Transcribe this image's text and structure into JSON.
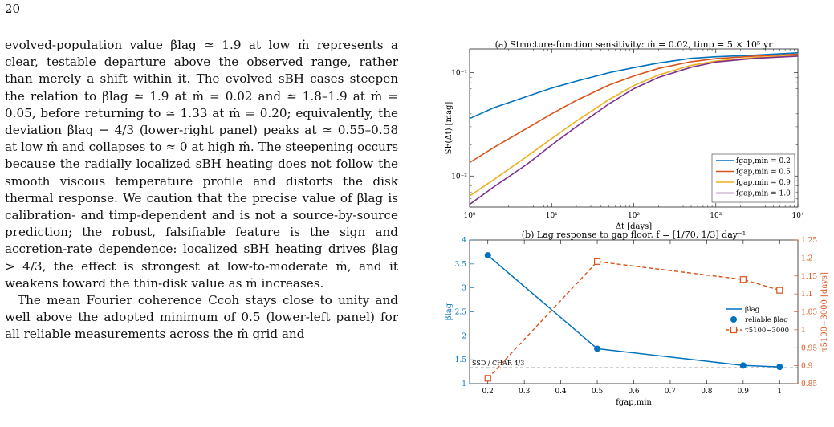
{
  "page": {
    "number": "20",
    "paragraphs": [
      "evolved-population value βlag ≃ 1.9 at low ṁ represents a clear, testable departure above the observed range, rather than merely a shift within it. The evolved sBH cases steepen the relation to βlag ≃ 1.9 at ṁ = 0.02 and ≃ 1.8–1.9 at ṁ = 0.05, before returning to ≃ 1.33 at ṁ = 0.20; equivalently, the deviation βlag − 4/3 (lower-right panel) peaks at ≃ 0.55–0.58 at low ṁ and collapses to ≈ 0 at high ṁ. The steepening occurs because the radially localized sBH heating does not follow the smooth viscous temperature profile and distorts the disk thermal response. We caution that the precise value of βlag is calibration- and timp-dependent and is not a source-by-source prediction; the robust, falsifiable feature is the sign and accretion-rate dependence: localized sBH heating drives βlag > 4/3, the effect is strongest at low-to-moderate ṁ, and it weakens toward the thin-disk value as ṁ increases.",
      "The mean Fourier coherence Ccoh stays close to unity and well above the adopted minimum of 0.5 (lower-left panel) for all reliable measurements across the ṁ grid and"
    ]
  },
  "chart_data": [
    {
      "type": "line",
      "title": "(a) Structure-function sensitivity: ṁ = 0.02, timp = 5 × 10⁵ yr",
      "xlabel": "Δt [days]",
      "ylabel": "SF(Δt) [mag]",
      "xscale": "log",
      "yscale": "log",
      "xlim": [
        1,
        10000
      ],
      "ylim": [
        0.005,
        0.17
      ],
      "xticks": [
        "10⁰",
        "10¹",
        "10²",
        "10³",
        "10⁴"
      ],
      "yticks": [
        "10⁻²",
        "10⁻¹"
      ],
      "legend_position": "lower-right",
      "grid": false,
      "series": [
        {
          "name": "fgap,min = 0.2",
          "color": "#0072bd",
          "x": [
            1,
            2,
            5,
            10,
            20,
            50,
            100,
            200,
            500,
            1000,
            3000,
            10000
          ],
          "values": [
            0.036,
            0.046,
            0.059,
            0.071,
            0.083,
            0.1,
            0.112,
            0.124,
            0.138,
            0.143,
            0.148,
            0.156
          ]
        },
        {
          "name": "fgap,min = 0.5",
          "color": "#d95319",
          "x": [
            1,
            2,
            5,
            10,
            20,
            50,
            100,
            200,
            500,
            1000,
            3000,
            10000
          ],
          "values": [
            0.0135,
            0.019,
            0.029,
            0.04,
            0.054,
            0.076,
            0.093,
            0.11,
            0.128,
            0.137,
            0.145,
            0.151
          ]
        },
        {
          "name": "fgap,min = 0.9",
          "color": "#edb120",
          "x": [
            1,
            2,
            5,
            10,
            20,
            50,
            100,
            200,
            500,
            1000,
            3000,
            10000
          ],
          "values": [
            0.0064,
            0.0093,
            0.0155,
            0.023,
            0.034,
            0.055,
            0.075,
            0.095,
            0.118,
            0.13,
            0.14,
            0.147
          ]
        },
        {
          "name": "fgap,min = 1.0",
          "color": "#7e2f8e",
          "x": [
            1,
            2,
            5,
            10,
            20,
            50,
            100,
            200,
            500,
            1000,
            3000,
            10000
          ],
          "values": [
            0.0053,
            0.0079,
            0.013,
            0.02,
            0.03,
            0.05,
            0.07,
            0.09,
            0.113,
            0.127,
            0.138,
            0.145
          ]
        }
      ]
    },
    {
      "type": "line",
      "title": "(b) Lag response to gap floor, f = [1/70, 1/3] day⁻¹",
      "xlabel": "fgap,min",
      "ylabel": "βlag",
      "y2label": "τ5100−3000 [days]",
      "xlim": [
        0.15,
        1.05
      ],
      "ylim": [
        1,
        4
      ],
      "y2lim": [
        0.85,
        1.25
      ],
      "xticks": [
        "0.2",
        "0.3",
        "0.4",
        "0.5",
        "0.6",
        "0.7",
        "0.8",
        "0.9",
        "1"
      ],
      "yticks": [
        "1",
        "1.5",
        "2",
        "2.5",
        "3",
        "3.5",
        "4"
      ],
      "y2ticks": [
        "0.85",
        "0.9",
        "0.95",
        "1",
        "1.05",
        "1.1",
        "1.15",
        "1.2",
        "1.25"
      ],
      "legend_position": "right",
      "grid": false,
      "x": [
        0.2,
        0.5,
        0.9,
        1.0
      ],
      "series": [
        {
          "name": "βlag",
          "axis": "left",
          "color": "#0072bd",
          "values": [
            3.68,
            1.73,
            1.38,
            1.35
          ]
        },
        {
          "name": "reliable βlag",
          "axis": "left",
          "color": "#0072bd",
          "marker": "circle",
          "values": [
            3.68,
            1.73,
            1.38,
            1.35
          ]
        },
        {
          "name": "τ5100−3000",
          "axis": "right",
          "color": "#d95319",
          "marker": "square",
          "values": [
            0.865,
            1.19,
            1.14,
            1.11
          ]
        }
      ],
      "reference_line": {
        "y": 1.333,
        "label": "SSD / CHAR 4/3"
      }
    }
  ]
}
